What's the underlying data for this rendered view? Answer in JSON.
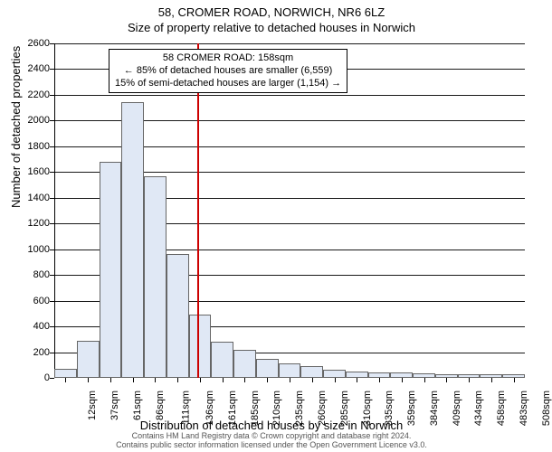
{
  "header": {
    "address": "58, CROMER ROAD, NORWICH, NR6 6LZ",
    "subtitle": "Size of property relative to detached houses in Norwich"
  },
  "axes": {
    "ylabel": "Number of detached properties",
    "xlabel": "Distribution of detached houses by size in Norwich",
    "ymax": 2600,
    "ystep": 200,
    "yticks": [
      0,
      200,
      400,
      600,
      800,
      1000,
      1200,
      1400,
      1600,
      1800,
      2000,
      2200,
      2400,
      2600
    ]
  },
  "histogram": {
    "type": "histogram",
    "bar_fill": "#e0e8f5",
    "bar_stroke": "#666666",
    "background": "#ffffff",
    "bins_sqm": [
      12,
      37,
      61,
      86,
      111,
      136,
      161,
      185,
      210,
      235,
      260,
      285,
      310,
      335,
      359,
      384,
      409,
      434,
      458,
      483,
      508
    ],
    "counts": [
      70,
      290,
      1680,
      2140,
      1570,
      960,
      490,
      280,
      220,
      150,
      110,
      90,
      60,
      50,
      45,
      40,
      35,
      30,
      30,
      30,
      28
    ]
  },
  "marker": {
    "value_sqm": 158,
    "color": "#cc0000"
  },
  "callout": {
    "line1": "58 CROMER ROAD: 158sqm",
    "line2": "← 85% of detached houses are smaller (6,559)",
    "line3": "15% of semi-detached houses are larger (1,154) →"
  },
  "footer": {
    "line1": "Contains HM Land Registry data © Crown copyright and database right 2024.",
    "line2": "Contains public sector information licensed under the Open Government Licence v3.0."
  }
}
